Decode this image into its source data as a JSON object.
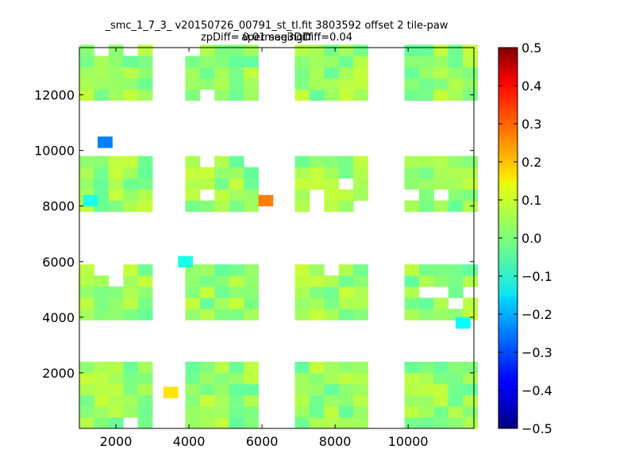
{
  "chart_data": {
    "type": "heatmap",
    "title": "_smc_1_7_3_ v20150726_00791_st_tl.fit 3803592 offset 2 tile-paw apermag3Diff",
    "subtitle": "zpDiff= 0.01 seeingDiff=0.04",
    "xlim": [
      1000,
      11800
    ],
    "ylim": [
      0,
      13700
    ],
    "xticks": [
      2000,
      4000,
      6000,
      8000,
      10000
    ],
    "yticks": [
      2000,
      4000,
      6000,
      8000,
      10000,
      12000
    ],
    "colorbar": {
      "colormap": "jet",
      "range": [
        -0.5,
        0.5
      ],
      "ticks": [
        -0.5,
        -0.4,
        -0.3,
        -0.2,
        -0.1,
        0.0,
        0.1,
        0.2,
        0.3,
        0.4,
        0.5
      ],
      "tick_labels": [
        "−0.5",
        "−0.4",
        "−0.3",
        "−0.2",
        "−0.1",
        "0.0",
        "0.1",
        "0.2",
        "0.3",
        "0.4",
        "0.5"
      ]
    },
    "cell_size": 400,
    "background_value": 0.02,
    "outlier_cells": [
      {
        "x": 1500,
        "y": 10100,
        "value": -0.25
      },
      {
        "x": 5900,
        "y": 8000,
        "value": 0.25
      },
      {
        "x": 3300,
        "y": 1100,
        "value": 0.15
      },
      {
        "x": 11300,
        "y": 3600,
        "value": -0.12
      },
      {
        "x": 3700,
        "y": 5800,
        "value": -0.1
      },
      {
        "x": 1100,
        "y": 8000,
        "value": -0.1
      }
    ]
  }
}
